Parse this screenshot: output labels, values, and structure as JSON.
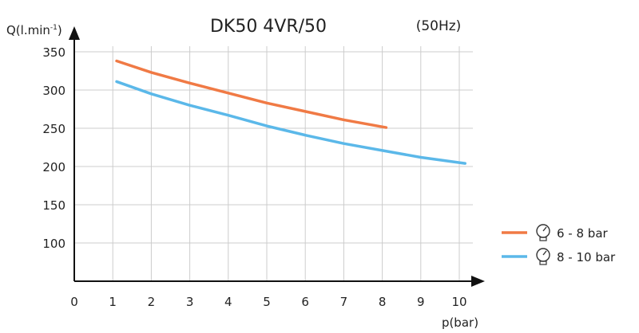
{
  "chart_data": {
    "type": "line",
    "title": "DK50 4VR/50",
    "subtitle": "(50Hz)",
    "xlabel": "p(bar)",
    "ylabel": "Q(l.min-1)",
    "ylabel_main": "Q(l.min",
    "ylabel_sup": "-1",
    "ylabel_end": ")",
    "xlim": [
      0,
      10.6
    ],
    "ylim": [
      50,
      370
    ],
    "xticks": [
      "0",
      "1",
      "2",
      "3",
      "4",
      "5",
      "6",
      "7",
      "8",
      "9",
      "10"
    ],
    "yticks": [
      "100",
      "150",
      "200",
      "250",
      "300",
      "350"
    ],
    "grid": true,
    "legend_position": "right",
    "series": [
      {
        "name": "6 - 8 bar",
        "color": "#f07a45",
        "icon": "pressure-gauge-icon",
        "x": [
          1.1,
          2,
          3,
          4,
          5,
          6,
          7,
          8.1
        ],
        "y": [
          338,
          323,
          309,
          296,
          283,
          272,
          261,
          251
        ]
      },
      {
        "name": "8 - 10 bar",
        "color": "#5bb8e9",
        "icon": "pressure-gauge-icon",
        "x": [
          1.1,
          2,
          3,
          4,
          5,
          6,
          7,
          8,
          9,
          10.15
        ],
        "y": [
          311,
          295,
          280,
          267,
          253,
          241,
          230,
          221,
          212,
          204
        ]
      }
    ]
  }
}
